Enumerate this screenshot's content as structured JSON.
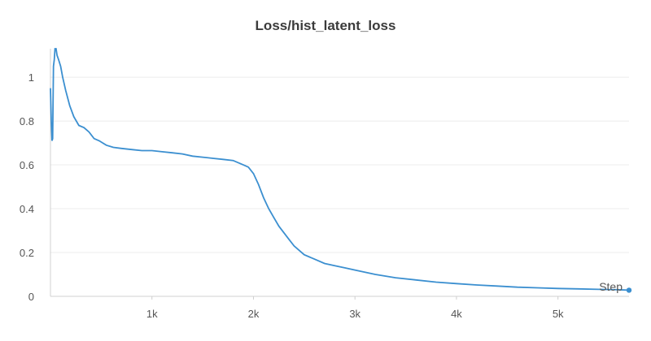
{
  "chart_data": {
    "type": "line",
    "title": "Loss/hist_latent_loss",
    "xlabel": "Step",
    "ylabel": "",
    "xlim": [
      0,
      5700
    ],
    "ylim": [
      0,
      1.13
    ],
    "x_ticks": [
      {
        "value": 1000,
        "label": "1k"
      },
      {
        "value": 2000,
        "label": "2k"
      },
      {
        "value": 3000,
        "label": "3k"
      },
      {
        "value": 4000,
        "label": "4k"
      },
      {
        "value": 5000,
        "label": "5k"
      }
    ],
    "y_ticks": [
      {
        "value": 0,
        "label": "0"
      },
      {
        "value": 0.2,
        "label": "0.2"
      },
      {
        "value": 0.4,
        "label": "0.4"
      },
      {
        "value": 0.6,
        "label": "0.6"
      },
      {
        "value": 0.8,
        "label": "0.8"
      },
      {
        "value": 1,
        "label": "1"
      }
    ],
    "grid": true,
    "color": "#3b8fd0",
    "series": [
      {
        "x": [
          0,
          8,
          15,
          22,
          30,
          38,
          45,
          55,
          65,
          80,
          100,
          120,
          150,
          190,
          230,
          280,
          330,
          380,
          430,
          480,
          550,
          620,
          700,
          800,
          900,
          1000,
          1100,
          1200,
          1300,
          1400,
          1500,
          1600,
          1700,
          1800,
          1900,
          1950,
          2000,
          2050,
          2100,
          2150,
          2200,
          2250,
          2300,
          2350,
          2400,
          2450,
          2500,
          2600,
          2700,
          2800,
          2900,
          3000,
          3200,
          3400,
          3600,
          3800,
          4000,
          4200,
          4400,
          4600,
          4800,
          5000,
          5200,
          5400,
          5600,
          5700
        ],
        "y": [
          0.95,
          0.8,
          0.71,
          0.72,
          1.05,
          1.08,
          1.13,
          1.13,
          1.1,
          1.08,
          1.05,
          1.0,
          0.94,
          0.87,
          0.82,
          0.78,
          0.77,
          0.75,
          0.72,
          0.71,
          0.69,
          0.68,
          0.675,
          0.67,
          0.665,
          0.665,
          0.66,
          0.655,
          0.65,
          0.64,
          0.635,
          0.63,
          0.625,
          0.62,
          0.6,
          0.59,
          0.56,
          0.51,
          0.45,
          0.4,
          0.36,
          0.32,
          0.29,
          0.26,
          0.23,
          0.21,
          0.19,
          0.17,
          0.15,
          0.14,
          0.13,
          0.12,
          0.1,
          0.085,
          0.075,
          0.065,
          0.058,
          0.052,
          0.047,
          0.042,
          0.039,
          0.036,
          0.034,
          0.032,
          0.03,
          0.028
        ]
      }
    ]
  }
}
